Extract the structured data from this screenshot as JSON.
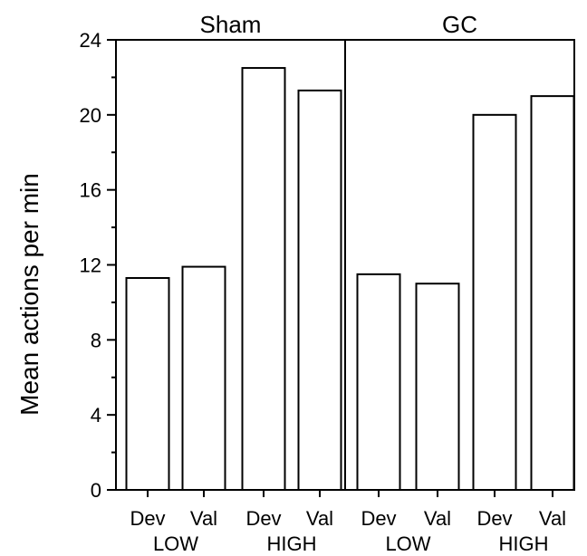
{
  "chart_data": {
    "type": "bar",
    "ylabel": "Mean actions per min",
    "ylim": [
      0,
      24
    ],
    "yticks": [
      0,
      4,
      8,
      12,
      16,
      20,
      24
    ],
    "panels": [
      {
        "title": "Sham",
        "categories": [
          "Dev",
          "Val",
          "Dev",
          "Val"
        ],
        "groups": [
          "LOW",
          "HIGH"
        ],
        "values": [
          11.3,
          11.9,
          22.5,
          21.3
        ]
      },
      {
        "title": "GC",
        "categories": [
          "Dev",
          "Val",
          "Dev",
          "Val"
        ],
        "groups": [
          "LOW",
          "HIGH"
        ],
        "values": [
          11.5,
          11.0,
          20.0,
          21.0
        ]
      }
    ],
    "grid": false,
    "bar_color": "#ffffff",
    "edge_color": "#000000"
  }
}
